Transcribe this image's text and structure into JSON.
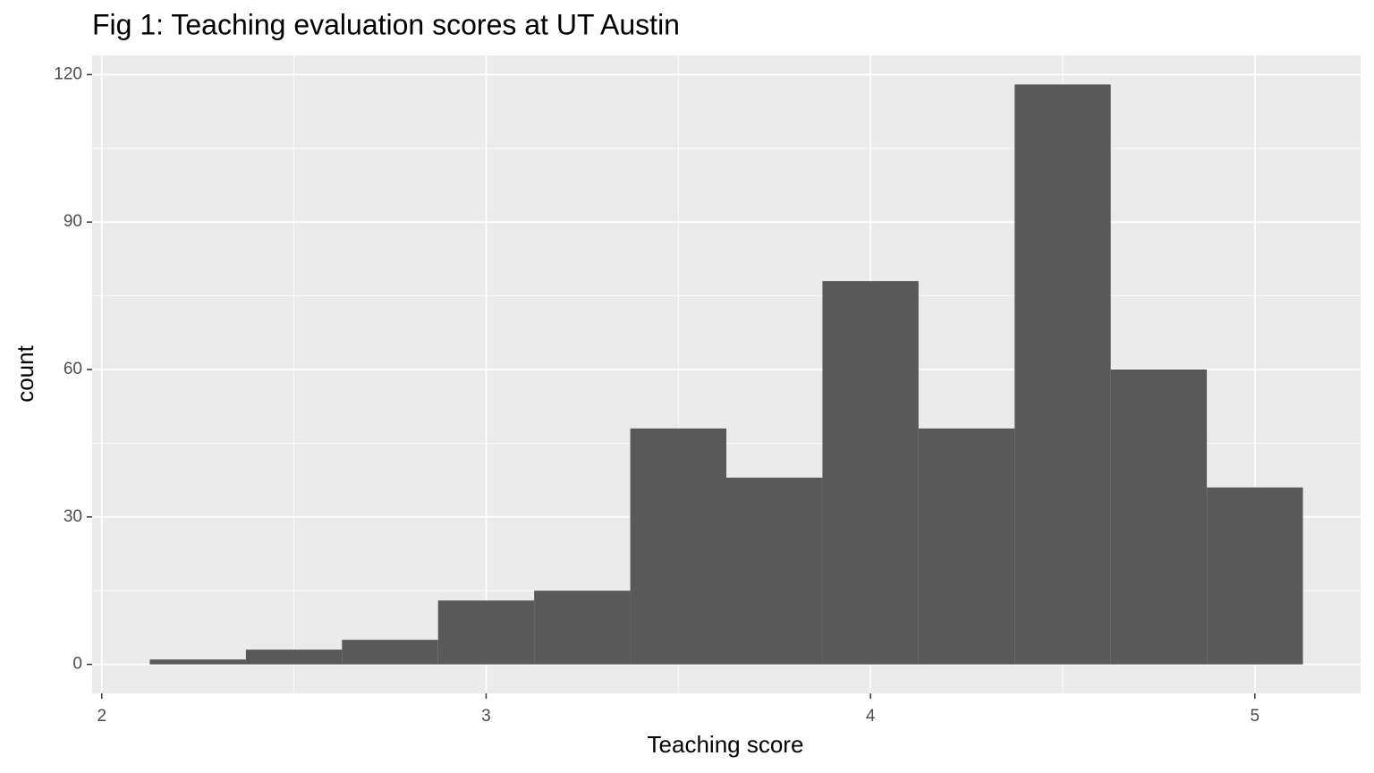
{
  "chart_data": {
    "type": "histogram",
    "title": "Fig 1: Teaching evaluation scores at UT Austin",
    "x_label": "Teaching score",
    "y_label": "count",
    "bins": [
      2.125,
      2.375,
      2.625,
      2.875,
      3.125,
      3.375,
      3.625,
      3.875,
      4.125,
      4.375,
      4.625,
      4.875,
      5.125
    ],
    "values": [
      1,
      3,
      5,
      13,
      15,
      48,
      38,
      78,
      48,
      118,
      60,
      36
    ],
    "color": "#595959",
    "xlim": [
      1.975,
      5.275
    ],
    "xticks": [
      2,
      3,
      4,
      5
    ],
    "ylim": [
      -5.9,
      123.9
    ],
    "yticks": [
      0,
      30,
      60,
      90,
      120
    ],
    "x_minor_grid": [
      2.5,
      3.5,
      4.5
    ],
    "y_minor_grid": [
      15,
      45,
      75,
      105
    ],
    "grid": true
  }
}
